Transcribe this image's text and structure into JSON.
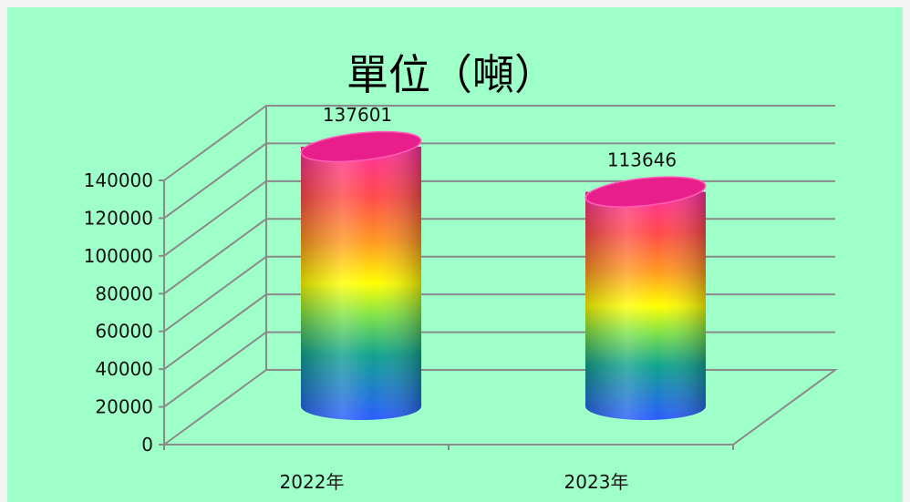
{
  "chart_data": {
    "type": "bar",
    "title": "單位（噸）",
    "categories": [
      "2022年",
      "2023年"
    ],
    "values": [
      137601,
      113646
    ],
    "data_labels": [
      "137601",
      "113646"
    ],
    "ylim": [
      0,
      140000
    ],
    "yticks": [
      "0",
      "20000",
      "40000",
      "60000",
      "80000",
      "100000",
      "120000",
      "140000"
    ],
    "ytick_values": [
      0,
      20000,
      40000,
      60000,
      80000,
      100000,
      120000,
      140000
    ],
    "xlabel": "",
    "ylabel": "",
    "grid": true,
    "style": "3d-cylinder",
    "colors": {
      "background": "#9effc8",
      "gradient_top": "#ff2fa0",
      "gradient_mid": "#ffff00",
      "gradient_bottom": "#2a5cff"
    }
  }
}
